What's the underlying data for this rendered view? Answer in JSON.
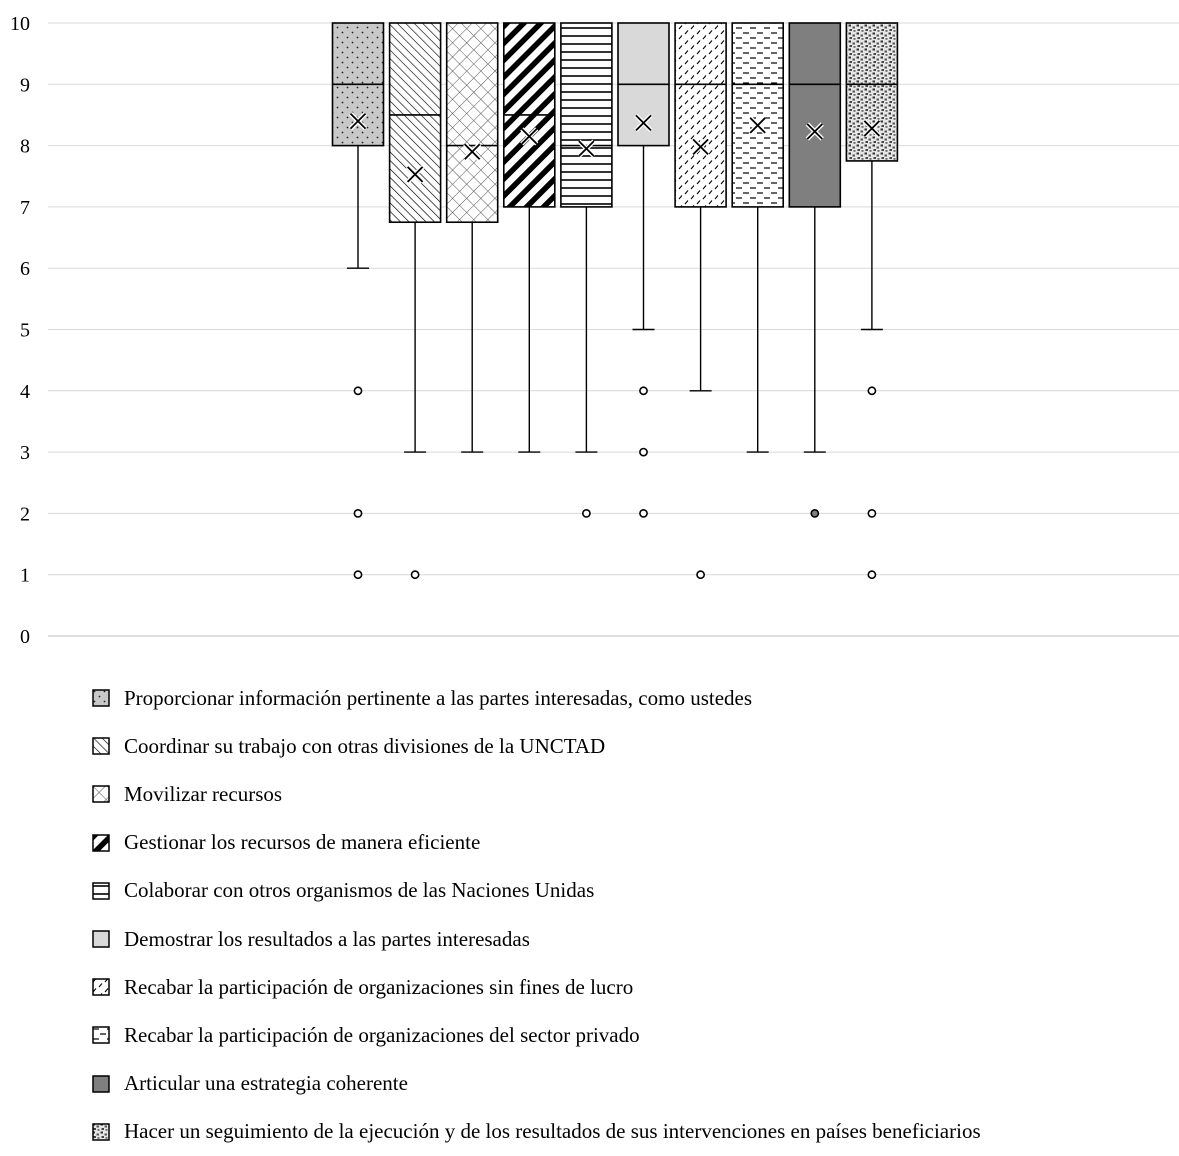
{
  "chart_data": {
    "type": "boxplot",
    "title": "",
    "xlabel": "",
    "ylabel": "",
    "ylim": [
      0,
      10
    ],
    "yticks": [
      0,
      1,
      2,
      3,
      4,
      5,
      6,
      7,
      8,
      9,
      10
    ],
    "grid": true,
    "legend_position": "bottom",
    "series": [
      {
        "name": "Proporcionar información pertinente a las partes interesadas, como ustedes",
        "min": 6,
        "q1": 8,
        "median": 9,
        "q3": 10,
        "max": 10,
        "mean": 8.4,
        "outliers": [
          4,
          2,
          1
        ],
        "fill": "#c8c8c8",
        "pattern": "dots"
      },
      {
        "name": "Coordinar su trabajo con otras divisiones de la UNCTAD",
        "min": 3,
        "q1": 6.75,
        "median": 8.5,
        "q3": 10,
        "max": 10,
        "mean": 7.53,
        "outliers": [
          1
        ],
        "fill": "#ffffff",
        "pattern": "diag-thin"
      },
      {
        "name": "Movilizar recursos",
        "min": 3,
        "q1": 6.75,
        "median": 8,
        "q3": 10,
        "max": 10,
        "mean": 7.9,
        "outliers": [],
        "fill": "#ffffff",
        "pattern": "crosshatch"
      },
      {
        "name": "Gestionar los recursos de manera eficiente",
        "min": 3,
        "q1": 7,
        "median": 8.5,
        "q3": 10,
        "max": 10,
        "mean": 8.15,
        "outliers": [],
        "fill": "#ffffff",
        "pattern": "diag-thick"
      },
      {
        "name": "Colaborar con otros organismos de las Naciones Unidas",
        "min": 3,
        "q1": 7,
        "median": 8,
        "q3": 10,
        "max": 10,
        "mean": 7.95,
        "outliers": [
          2
        ],
        "fill": "#ffffff",
        "pattern": "horizontal"
      },
      {
        "name": "Demostrar los resultados a las partes interesadas",
        "min": 5,
        "q1": 8,
        "median": 9,
        "q3": 10,
        "max": 10,
        "mean": 8.37,
        "outliers": [
          4,
          3,
          2
        ],
        "fill": "#d9d9d9",
        "pattern": "solid"
      },
      {
        "name": "Recabar la participación de organizaciones sin fines de lucro",
        "min": 4,
        "q1": 7,
        "median": 9,
        "q3": 10,
        "max": 10,
        "mean": 7.98,
        "outliers": [
          1
        ],
        "fill": "#ffffff",
        "pattern": "dashed-diag"
      },
      {
        "name": "Recabar la participación de organizaciones del sector privado",
        "min": 3,
        "q1": 7,
        "median": 9,
        "q3": 10,
        "max": 10,
        "mean": 8.33,
        "outliers": [],
        "fill": "#ffffff",
        "pattern": "dashed-horizontal"
      },
      {
        "name": "Articular una estrategia coherente",
        "min": 3,
        "q1": 7,
        "median": 9,
        "q3": 10,
        "max": 10,
        "mean": 8.23,
        "outliers": [
          2
        ],
        "fill": "#7f7f7f",
        "pattern": "solid"
      },
      {
        "name": "Hacer un seguimiento de la ejecución y de los resultados de sus intervenciones en países beneficiarios",
        "min": 5,
        "q1": 7.75,
        "median": 9,
        "q3": 10,
        "max": 10,
        "mean": 8.28,
        "outliers": [
          4,
          2,
          1
        ],
        "fill": "#ffffff",
        "pattern": "confetti"
      }
    ]
  }
}
